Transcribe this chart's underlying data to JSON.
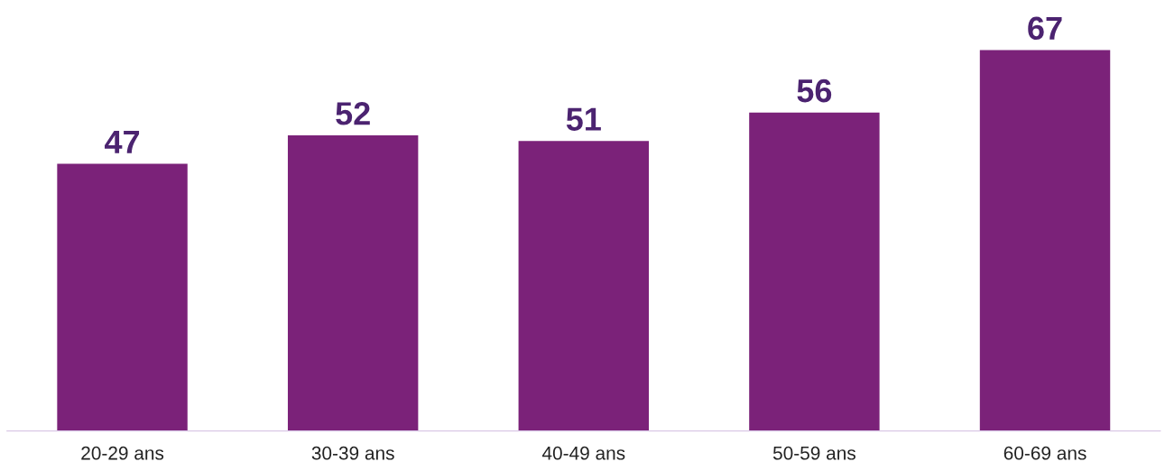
{
  "chart_data": {
    "type": "bar",
    "categories": [
      "20-29 ans",
      "30-39 ans",
      "40-49 ans",
      "50-59 ans",
      "60-69 ans"
    ],
    "values": [
      47,
      52,
      51,
      56,
      67
    ],
    "color": "#7b2279",
    "data_labels": true,
    "grid": false,
    "legend": false
  }
}
